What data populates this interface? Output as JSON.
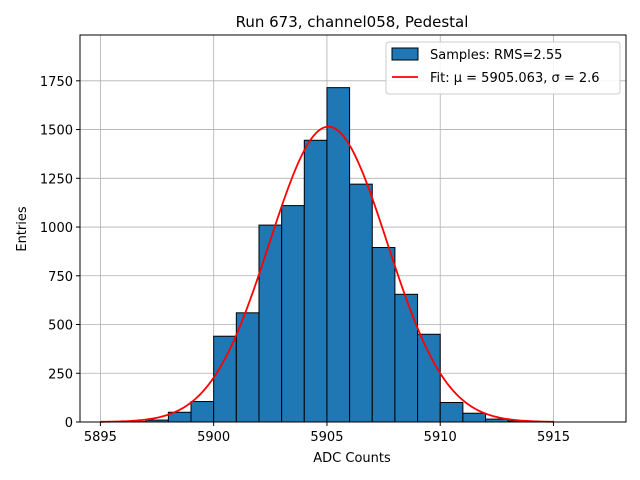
{
  "chart_data": {
    "type": "bar",
    "title": "Run 673, channel058, Pedestal",
    "xlabel": "ADC Counts",
    "ylabel": "Entries",
    "xlim": [
      5894.1,
      5918.2
    ],
    "ylim": [
      0,
      1985
    ],
    "xticks": [
      5895,
      5900,
      5905,
      5910,
      5915
    ],
    "xtick_labels": [
      "5895",
      "5900",
      "5905",
      "5910",
      "5915"
    ],
    "yticks": [
      0,
      250,
      500,
      750,
      1000,
      1250,
      1500,
      1750
    ],
    "ytick_labels": [
      "0",
      "250",
      "500",
      "750",
      "1000",
      "1250",
      "1500",
      "1750"
    ],
    "grid": true,
    "legend_position": "top-right",
    "bin_width": 1,
    "histogram": {
      "name": "Samples: RMS=2.55",
      "color": "#1f77b4",
      "edge_color": "#000000",
      "bin_starts": [
        5895,
        5896,
        5897,
        5898,
        5899,
        5900,
        5901,
        5902,
        5903,
        5904,
        5905,
        5906,
        5907,
        5908,
        5909,
        5910,
        5911,
        5912,
        5913,
        5914
      ],
      "values": [
        0,
        2,
        10,
        50,
        105,
        440,
        560,
        1010,
        1110,
        1445,
        1715,
        1220,
        895,
        655,
        450,
        100,
        45,
        15,
        5,
        2
      ]
    },
    "fit": {
      "name": "Fit: μ = 5905.063, σ = 2.6",
      "color": "#ff0000",
      "mu": 5905.063,
      "sigma": 2.6,
      "amplitude": 1515,
      "x_range": [
        5895,
        5915
      ]
    }
  }
}
